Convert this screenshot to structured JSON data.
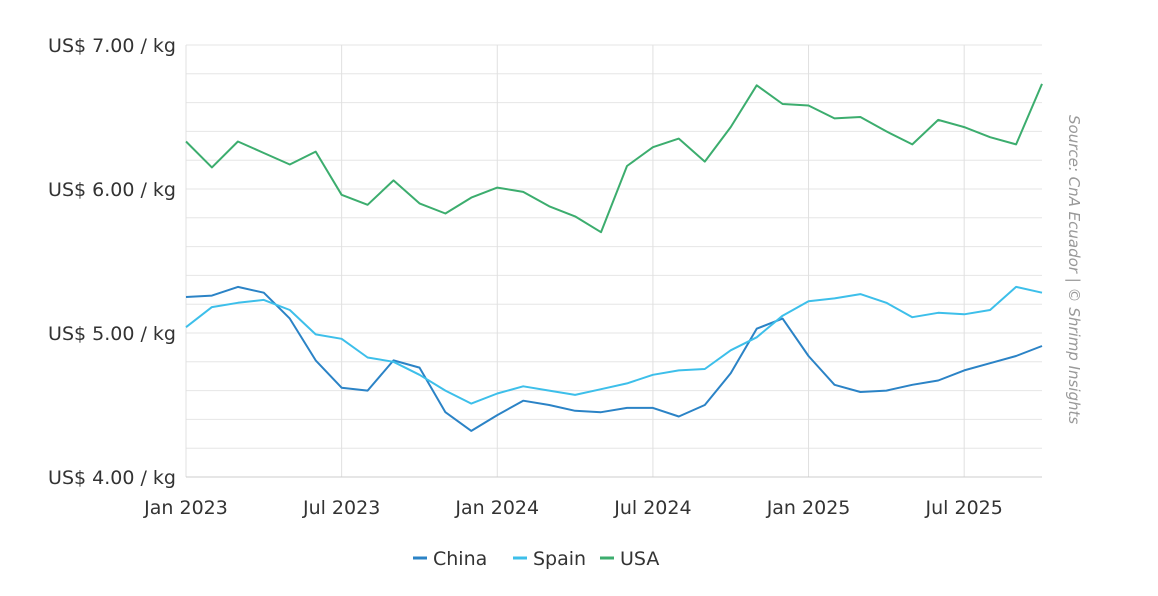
{
  "chart_data": {
    "type": "line",
    "title": "",
    "xlabel": "",
    "ylabel": "",
    "ylim": [
      4.0,
      7.0
    ],
    "y_ticks": [
      {
        "value": 7.0,
        "label": "US$ 7.00 / kg"
      },
      {
        "value": 6.0,
        "label": "US$ 6.00 / kg"
      },
      {
        "value": 5.0,
        "label": "US$ 5.00 / kg"
      },
      {
        "value": 4.0,
        "label": "US$ 4.00 / kg"
      }
    ],
    "minor_grid_step": 0.2,
    "x_ticks": [
      {
        "month_index": 0,
        "label": "Jan 2023"
      },
      {
        "month_index": 6,
        "label": "Jul 2023"
      },
      {
        "month_index": 12,
        "label": "Jan 2024"
      },
      {
        "month_index": 18,
        "label": "Jul 2024"
      },
      {
        "month_index": 24,
        "label": "Jan 2025"
      },
      {
        "month_index": 30,
        "label": "Jul 2025"
      }
    ],
    "x_range_months": [
      0,
      33
    ],
    "x_start": "Jan 2023",
    "grid": true,
    "legend_position": "bottom-center",
    "source": "Source: CnA Ecuador | © Shrimp Insights",
    "series": [
      {
        "name": "China",
        "color": "#2b83c6",
        "values": [
          5.25,
          5.26,
          5.32,
          5.28,
          5.1,
          4.81,
          4.62,
          4.6,
          4.81,
          4.76,
          4.45,
          4.32,
          4.43,
          4.53,
          4.5,
          4.46,
          4.45,
          4.48,
          4.48,
          4.42,
          4.5,
          4.72,
          5.03,
          5.1,
          4.84,
          4.64,
          4.59,
          4.6,
          4.64,
          4.67,
          4.74,
          4.79,
          4.84,
          4.91
        ]
      },
      {
        "name": "Spain",
        "color": "#3dbfea",
        "values": [
          5.04,
          5.18,
          5.21,
          5.23,
          5.16,
          4.99,
          4.96,
          4.83,
          4.8,
          4.71,
          4.6,
          4.51,
          4.58,
          4.63,
          4.6,
          4.57,
          4.61,
          4.65,
          4.71,
          4.74,
          4.75,
          4.88,
          4.97,
          5.12,
          5.22,
          5.24,
          5.27,
          5.21,
          5.11,
          5.14,
          5.13,
          5.16,
          5.32,
          5.28
        ]
      },
      {
        "name": "USA",
        "color": "#3cad6e",
        "values": [
          6.33,
          6.15,
          6.33,
          6.25,
          6.17,
          6.26,
          5.96,
          5.89,
          6.06,
          5.9,
          5.83,
          5.94,
          6.01,
          5.98,
          5.88,
          5.81,
          5.7,
          6.16,
          6.29,
          6.35,
          6.19,
          6.43,
          6.72,
          6.59,
          6.58,
          6.49,
          6.5,
          6.4,
          6.31,
          6.48,
          6.43,
          6.36,
          6.31,
          6.73
        ]
      }
    ]
  }
}
